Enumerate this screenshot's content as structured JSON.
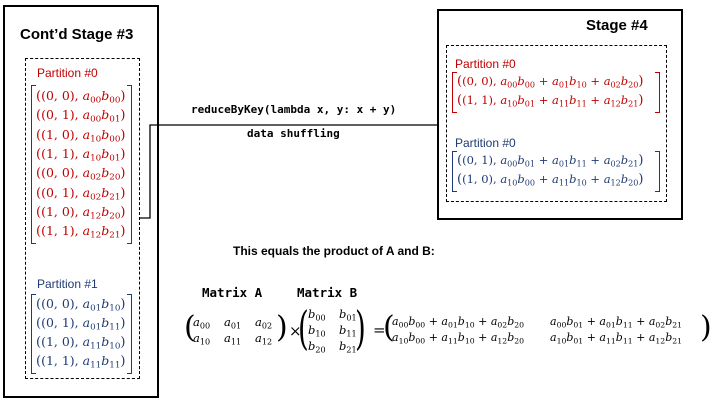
{
  "stage3": {
    "title": "Cont’d Stage #3",
    "partition0": {
      "label": "Partition #0",
      "rows": [
        {
          "key": "(0, 0),",
          "a": "00",
          "b": "00"
        },
        {
          "key": "(0, 1),",
          "a": "00",
          "b": "01"
        },
        {
          "key": "(1, 0),",
          "a": "10",
          "b": "00"
        },
        {
          "key": "(1, 1),",
          "a": "10",
          "b": "01"
        },
        {
          "key": "(0, 0),",
          "a": "02",
          "b": "20"
        },
        {
          "key": "(0, 1),",
          "a": "02",
          "b": "21"
        },
        {
          "key": "(1, 0),",
          "a": "12",
          "b": "20"
        },
        {
          "key": "(1, 1),",
          "a": "12",
          "b": "21"
        }
      ]
    },
    "partition1": {
      "label": "Partition #1",
      "rows": [
        {
          "key": "(0, 0),",
          "a": "01",
          "b": "10"
        },
        {
          "key": "(0, 1),",
          "a": "01",
          "b": "11"
        },
        {
          "key": "(1, 0),",
          "a": "11",
          "b": "10"
        },
        {
          "key": "(1, 1),",
          "a": "11",
          "b": "11"
        }
      ]
    }
  },
  "arrow": {
    "operation": "reduceByKey(lambda x, y: x + y)",
    "caption": "data shuffling"
  },
  "stage4": {
    "title": "Stage #4",
    "partition0a": {
      "label": "Partition #0",
      "rows": [
        {
          "key": "(0, 0),",
          "terms": [
            [
              "00",
              "00"
            ],
            [
              "01",
              "10"
            ],
            [
              "02",
              "20"
            ]
          ]
        },
        {
          "key": "(1, 1),",
          "terms": [
            [
              "10",
              "01"
            ],
            [
              "11",
              "11"
            ],
            [
              "12",
              "21"
            ]
          ]
        }
      ]
    },
    "partition0b": {
      "label": "Partition #0",
      "rows": [
        {
          "key": "(0, 1),",
          "terms": [
            [
              "00",
              "01"
            ],
            [
              "01",
              "11"
            ],
            [
              "02",
              "21"
            ]
          ]
        },
        {
          "key": "(1, 0),",
          "terms": [
            [
              "10",
              "00"
            ],
            [
              "11",
              "10"
            ],
            [
              "12",
              "20"
            ]
          ]
        }
      ]
    }
  },
  "product": {
    "caption": "This equals the product of A and B:",
    "matrixA_label": "Matrix A",
    "matrixB_label": "Matrix B",
    "matrixA": [
      [
        "00",
        "01",
        "02"
      ],
      [
        "10",
        "11",
        "12"
      ]
    ],
    "matrixB": [
      [
        "00",
        "01"
      ],
      [
        "10",
        "11"
      ],
      [
        "20",
        "21"
      ]
    ],
    "times": "×",
    "equals": "=",
    "result": [
      [
        "a00b00 + a01b10 + a02b20",
        "a00b01 + a01b11 + a02b21"
      ],
      [
        "a10b00 + a11b10 + a12b20",
        "a10b01 + a11b11 + a12b21"
      ]
    ]
  },
  "colors": {
    "red": "#c00000",
    "blue": "#1f3b73"
  }
}
